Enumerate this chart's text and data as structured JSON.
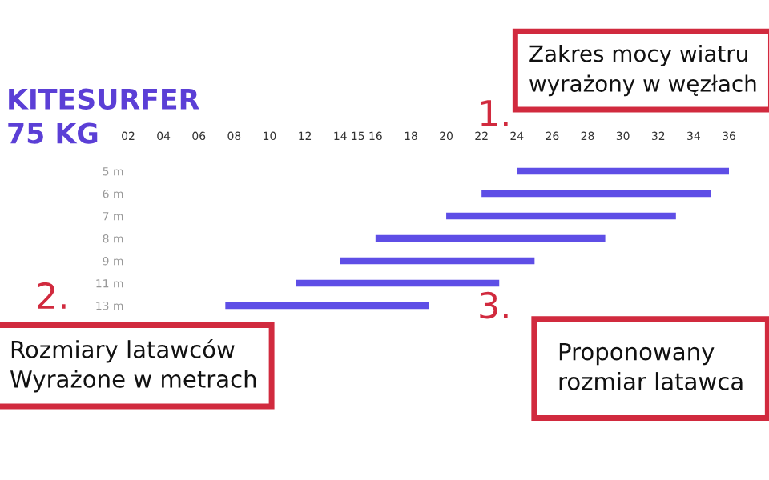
{
  "chart_data": {
    "type": "bar",
    "orientation": "horizontal",
    "title": "KITESURFER\n75 KG",
    "categories": [
      "5 m",
      "6 m",
      "7 m",
      "8 m",
      "9 m",
      "11 m",
      "13 m"
    ],
    "base": [
      24,
      22,
      20,
      16,
      14,
      11.5,
      7.5
    ],
    "values": [
      12,
      13,
      13,
      13,
      11,
      11.5,
      11.5
    ],
    "color": "#5e4ee6",
    "xlim": [
      2,
      36
    ],
    "xticks": [
      {
        "value": 2,
        "label": "02"
      },
      {
        "value": 4,
        "label": "04"
      },
      {
        "value": 6,
        "label": "06"
      },
      {
        "value": 8,
        "label": "08"
      },
      10,
      12,
      14,
      15,
      16,
      18,
      20,
      22,
      24,
      26,
      28,
      30,
      32,
      34,
      36
    ],
    "grid": false,
    "annotations": [
      "1.",
      "Zakres mocy wiatru\nwyrażony w węzłach",
      "2.",
      "Rozmiary latawców\nWyrażone w metrach",
      "3.",
      "Proponowany\nrozmiar latawca"
    ]
  }
}
